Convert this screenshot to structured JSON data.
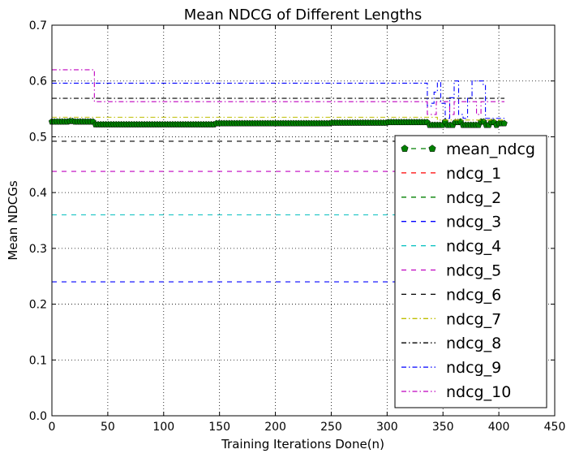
{
  "chart_data": {
    "type": "line",
    "title": "Mean NDCG of Different Lengths",
    "xlabel": "Training Iterations Done(n)",
    "ylabel": "Mean NDCGs",
    "xlim": [
      0,
      450
    ],
    "ylim": [
      0.0,
      0.7
    ],
    "xticks": [
      0,
      50,
      100,
      150,
      200,
      250,
      300,
      350,
      400,
      450
    ],
    "xtick_labels": [
      "0",
      "50",
      "100",
      "150",
      "200",
      "250",
      "300",
      "350",
      "400",
      "450"
    ],
    "yticks": [
      0.0,
      0.1,
      0.2,
      0.3,
      0.4,
      0.5,
      0.6,
      0.7
    ],
    "ytick_labels": [
      "0.0",
      "0.1",
      "0.2",
      "0.3",
      "0.4",
      "0.5",
      "0.6",
      "0.7"
    ],
    "grid": true,
    "legend_position": "right",
    "series": [
      {
        "name": "mean_ndcg",
        "color": "#008000",
        "style": "dashed-pentagon-markers",
        "points": [
          [
            0,
            0.527
          ],
          [
            10,
            0.527
          ],
          [
            15,
            0.528
          ],
          [
            20,
            0.527
          ],
          [
            30,
            0.527
          ],
          [
            36,
            0.527
          ],
          [
            38,
            0.522
          ],
          [
            80,
            0.522
          ],
          [
            140,
            0.522
          ],
          [
            145,
            0.524
          ],
          [
            200,
            0.524
          ],
          [
            250,
            0.525
          ],
          [
            300,
            0.526
          ],
          [
            335,
            0.526
          ],
          [
            338,
            0.521
          ],
          [
            346,
            0.521
          ],
          [
            350,
            0.527
          ],
          [
            353,
            0.521
          ],
          [
            360,
            0.526
          ],
          [
            364,
            0.527
          ],
          [
            368,
            0.521
          ],
          [
            380,
            0.521
          ],
          [
            384,
            0.527
          ],
          [
            388,
            0.521
          ],
          [
            392,
            0.526
          ],
          [
            396,
            0.521
          ],
          [
            400,
            0.524
          ],
          [
            405,
            0.526
          ]
        ]
      },
      {
        "name": "ndcg_1",
        "color": "#ff0000",
        "style": "dashed",
        "points": [
          [
            0,
            0.0
          ],
          [
            405,
            0.0
          ]
        ]
      },
      {
        "name": "ndcg_2",
        "color": "#008000",
        "style": "dashed",
        "points": [
          [
            0,
            0.0
          ],
          [
            405,
            0.0
          ]
        ]
      },
      {
        "name": "ndcg_3",
        "color": "#0000ff",
        "style": "dashed",
        "points": [
          [
            0,
            0.24
          ],
          [
            405,
            0.24
          ]
        ]
      },
      {
        "name": "ndcg_4",
        "color": "#00bfbf",
        "style": "dashed",
        "points": [
          [
            0,
            0.36
          ],
          [
            405,
            0.36
          ]
        ]
      },
      {
        "name": "ndcg_5",
        "color": "#bf00bf",
        "style": "dashed",
        "points": [
          [
            0,
            0.438
          ],
          [
            405,
            0.438
          ]
        ]
      },
      {
        "name": "ndcg_6",
        "color": "#000000",
        "style": "dashed",
        "points": [
          [
            0,
            0.492
          ],
          [
            405,
            0.492
          ]
        ]
      },
      {
        "name": "ndcg_7",
        "color": "#bfbf00",
        "style": "dashdot",
        "points": [
          [
            0,
            0.535
          ],
          [
            340,
            0.535
          ],
          [
            345,
            0.53
          ],
          [
            405,
            0.53
          ]
        ]
      },
      {
        "name": "ndcg_8",
        "color": "#000000",
        "style": "dashdot",
        "points": [
          [
            0,
            0.569
          ],
          [
            405,
            0.569
          ]
        ]
      },
      {
        "name": "ndcg_9",
        "color": "#0000ff",
        "style": "dashdot",
        "points": [
          [
            0,
            0.596
          ],
          [
            334,
            0.596
          ],
          [
            336,
            0.555
          ],
          [
            340,
            0.56
          ],
          [
            342,
            0.58
          ],
          [
            345,
            0.6
          ],
          [
            348,
            0.56
          ],
          [
            352,
            0.533
          ],
          [
            356,
            0.57
          ],
          [
            360,
            0.6
          ],
          [
            364,
            0.54
          ],
          [
            368,
            0.533
          ],
          [
            372,
            0.57
          ],
          [
            376,
            0.6
          ],
          [
            380,
            0.6
          ],
          [
            384,
            0.6
          ],
          [
            386,
            0.592
          ],
          [
            388,
            0.533
          ],
          [
            392,
            0.533
          ],
          [
            405,
            0.533
          ]
        ]
      },
      {
        "name": "ndcg_10",
        "color": "#bf00bf",
        "style": "dashdot",
        "points": [
          [
            0,
            0.62
          ],
          [
            36,
            0.62
          ],
          [
            38,
            0.563
          ],
          [
            334,
            0.563
          ],
          [
            336,
            0.54
          ],
          [
            340,
            0.54
          ],
          [
            344,
            0.563
          ],
          [
            352,
            0.563
          ],
          [
            356,
            0.54
          ],
          [
            360,
            0.563
          ],
          [
            376,
            0.563
          ],
          [
            380,
            0.54
          ],
          [
            384,
            0.563
          ],
          [
            405,
            0.563
          ]
        ]
      }
    ]
  }
}
